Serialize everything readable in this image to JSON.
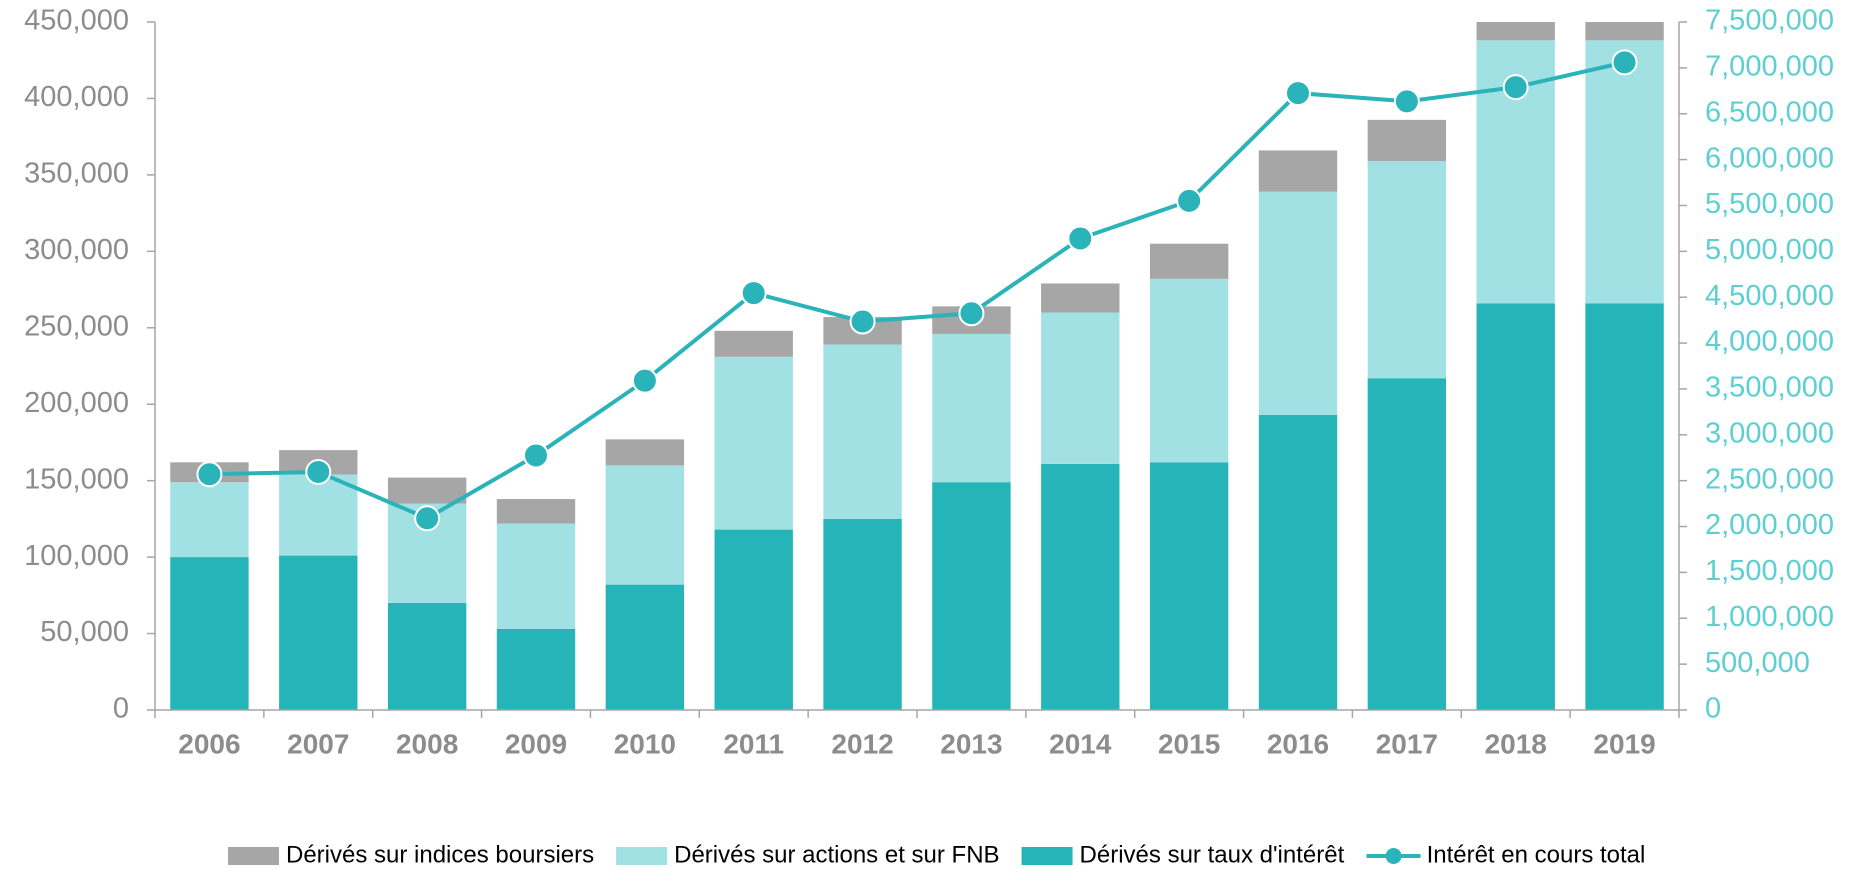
{
  "chart_data": {
    "type": "bar",
    "stacked": true,
    "categories": [
      "2006",
      "2007",
      "2008",
      "2009",
      "2010",
      "2011",
      "2012",
      "2013",
      "2014",
      "2015",
      "2016",
      "2017",
      "2018",
      "2019"
    ],
    "series": [
      {
        "name": "Dérivés sur taux d'intérêt",
        "color": "#25b4b8",
        "values": [
          100000,
          101000,
          70000,
          53000,
          82000,
          118000,
          125000,
          149000,
          161000,
          162000,
          193000,
          217000,
          266000,
          266000
        ]
      },
      {
        "name": "Dérivés sur actions et sur FNB",
        "color": "#a2e1e3",
        "values": [
          49000,
          53000,
          65000,
          69000,
          78000,
          113000,
          114000,
          97000,
          99000,
          120000,
          146000,
          142000,
          172000,
          172000
        ]
      },
      {
        "name": "Dérivés sur indices boursiers",
        "color": "#a6a6a6",
        "values": [
          13000,
          16000,
          17000,
          16000,
          17000,
          17000,
          18000,
          18000,
          19000,
          23000,
          27000,
          27000,
          12000,
          12000
        ]
      },
      {
        "name": "Intérêt en cours total",
        "color": "#2ab3b8",
        "type": "line",
        "axis": "y2",
        "values": [
          2570000,
          2595000,
          2090000,
          2775000,
          3590000,
          4545000,
          4235000,
          4325000,
          5140000,
          5550000,
          6725000,
          6635000,
          6790000,
          7060000
        ]
      }
    ],
    "legend_order": [
      2,
      1,
      0,
      3
    ],
    "ylim": [
      0,
      450000
    ],
    "yticks": [
      0,
      {
        "value": 50000,
        "label": "50,000"
      },
      {
        "value": 100000,
        "label": "100,000"
      },
      {
        "value": 150000,
        "label": "150,000"
      },
      {
        "value": 200000,
        "label": "200,000"
      },
      {
        "value": 250000,
        "label": "250,000"
      },
      {
        "value": 300000,
        "label": "300,000"
      },
      {
        "value": 350000,
        "label": "350,000"
      },
      {
        "value": 400000,
        "label": "400,000"
      },
      {
        "value": 450000,
        "label": "450,000"
      }
    ],
    "y2lim": [
      0,
      7500000
    ],
    "y2ticks": [
      0,
      {
        "value": 500000,
        "label": "500,000"
      },
      {
        "value": 1000000,
        "label": "1,000,000"
      },
      {
        "value": 1500000,
        "label": "1,500,000"
      },
      {
        "value": 2000000,
        "label": "2,000,000"
      },
      {
        "value": 2500000,
        "label": "2,500,000"
      },
      {
        "value": 3000000,
        "label": "3,000,000"
      },
      {
        "value": 3500000,
        "label": "3,500,000"
      },
      {
        "value": 4000000,
        "label": "4,000,000"
      },
      {
        "value": 4500000,
        "label": "4,500,000"
      },
      {
        "value": 5000000,
        "label": "5,000,000"
      },
      {
        "value": 5500000,
        "label": "5,500,000"
      },
      {
        "value": 6000000,
        "label": "6,000,000"
      },
      {
        "value": 6500000,
        "label": "6,500,000"
      },
      {
        "value": 7000000,
        "label": "7,000,000"
      },
      {
        "value": 7500000,
        "label": "7,500,000"
      }
    ],
    "legend": "bottom"
  }
}
